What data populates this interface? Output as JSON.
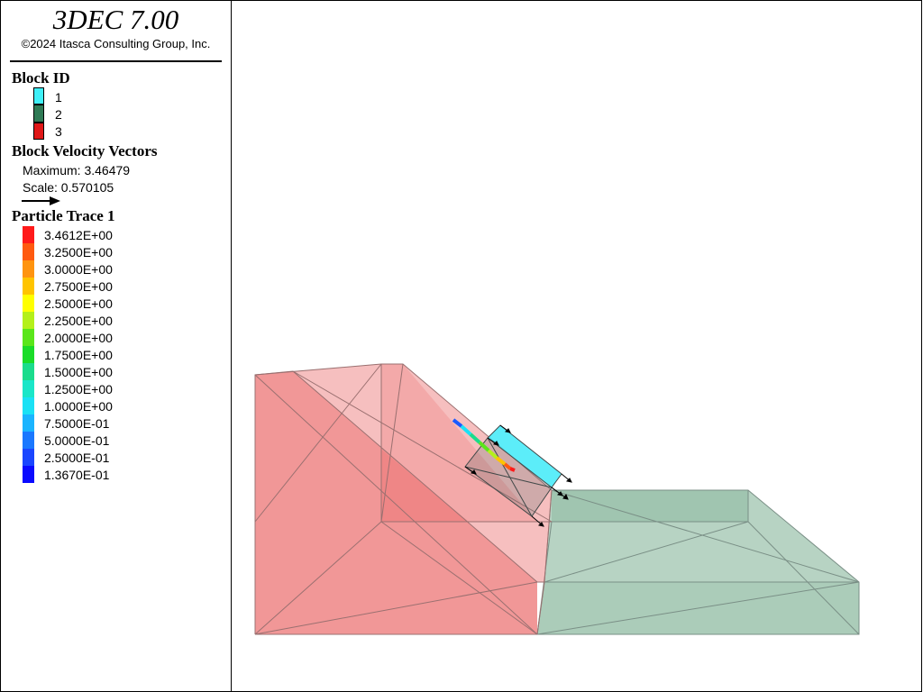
{
  "app": {
    "title": "3DEC 7.00",
    "copyright": "©2024 Itasca Consulting Group, Inc."
  },
  "legend": {
    "block_id": {
      "title": "Block  ID",
      "items": [
        {
          "label": "1",
          "color": "#3ff0f8"
        },
        {
          "label": "2",
          "color": "#2f7a55"
        },
        {
          "label": "3",
          "color": "#e01818"
        }
      ]
    },
    "velocity": {
      "title": "Block Velocity Vectors",
      "maximum": "Maximum: 3.46479",
      "scale": "Scale: 0.570105",
      "arrow_icon": "arrow-right-icon"
    },
    "particle_trace": {
      "title": "Particle Trace 1",
      "items": [
        {
          "label": "3.4612E+00",
          "color": "#ff1a1a"
        },
        {
          "label": "3.2500E+00",
          "color": "#ff5a10"
        },
        {
          "label": "3.0000E+00",
          "color": "#ff9410"
        },
        {
          "label": "2.7500E+00",
          "color": "#ffc400"
        },
        {
          "label": "2.5000E+00",
          "color": "#ffff00"
        },
        {
          "label": "2.2500E+00",
          "color": "#b4f01a"
        },
        {
          "label": "2.0000E+00",
          "color": "#5ae61a"
        },
        {
          "label": "1.7500E+00",
          "color": "#1adc28"
        },
        {
          "label": "1.5000E+00",
          "color": "#1adc8c"
        },
        {
          "label": "1.2500E+00",
          "color": "#1ae6c8"
        },
        {
          "label": "1.0000E+00",
          "color": "#1ae1f5"
        },
        {
          "label": "7.5000E-01",
          "color": "#1ab4ff"
        },
        {
          "label": "5.0000E-01",
          "color": "#1a78ff"
        },
        {
          "label": "2.5000E-01",
          "color": "#1a46ff"
        },
        {
          "label": "1.3670E-01",
          "color": "#0a0aff"
        }
      ]
    }
  },
  "model": {
    "block_colors": {
      "slope": "#ee8080",
      "base": "#8ab89e",
      "sliding": "#40eaf8"
    }
  }
}
